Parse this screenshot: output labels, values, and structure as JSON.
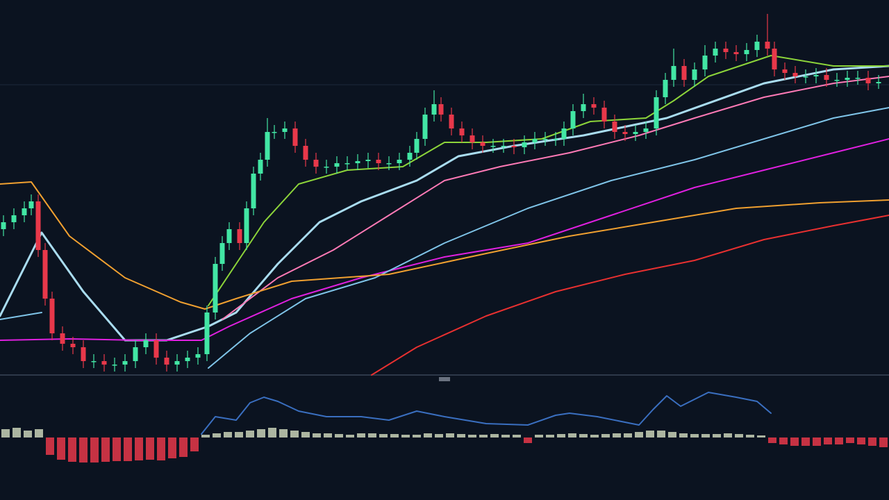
{
  "chart_data": [
    {
      "type": "candlestick",
      "xlim": [
        0,
        1280
      ],
      "ylim": [
        0,
        540
      ],
      "up_color": "#42e6a4",
      "down_color": "#e8384a",
      "x": [
        5,
        20,
        35,
        45,
        55,
        65,
        75,
        90,
        105,
        120,
        135,
        150,
        165,
        180,
        195,
        210,
        225,
        240,
        255,
        270,
        285,
        298,
        310,
        320,
        330,
        345,
        355,
        365,
        375,
        385,
        395,
        410,
        425,
        440,
        455,
        470,
        485,
        500,
        515,
        530,
        545,
        560,
        575,
        590,
        600,
        612,
        625,
        635,
        650,
        665,
        680,
        695,
        710,
        725,
        740,
        755,
        770,
        785,
        800,
        812,
        825,
        840,
        855,
        870,
        885,
        900,
        915,
        930,
        945,
        958,
        970,
        985,
        1000,
        1015,
        1030,
        1045,
        1060,
        1075,
        1090,
        1105,
        1115,
        1130,
        1145,
        1160,
        1175,
        1190,
        1205,
        1220,
        1235,
        1250,
        1265
      ],
      "open": [
        210,
        220,
        230,
        240,
        250,
        180,
        110,
        60,
        45,
        40,
        20,
        20,
        15,
        15,
        20,
        40,
        50,
        25,
        15,
        20,
        25,
        30,
        90,
        160,
        190,
        210,
        190,
        240,
        290,
        310,
        350,
        350,
        355,
        330,
        310,
        300,
        300,
        305,
        305,
        308,
        310,
        305,
        305,
        310,
        320,
        340,
        375,
        390,
        375,
        355,
        345,
        335,
        330,
        330,
        330,
        328,
        335,
        340,
        340,
        340,
        355,
        380,
        390,
        385,
        365,
        350,
        347,
        350,
        355,
        400,
        425,
        445,
        425,
        440,
        460,
        470,
        465,
        462,
        468,
        480,
        470,
        440,
        435,
        430,
        430,
        432,
        425,
        425,
        428,
        428,
        420
      ],
      "close": [
        220,
        230,
        240,
        250,
        180,
        110,
        60,
        45,
        40,
        20,
        20,
        15,
        15,
        20,
        40,
        50,
        25,
        15,
        20,
        25,
        30,
        90,
        160,
        190,
        210,
        190,
        240,
        290,
        310,
        350,
        350,
        355,
        330,
        310,
        300,
        300,
        305,
        305,
        308,
        310,
        305,
        305,
        310,
        320,
        340,
        375,
        390,
        375,
        355,
        345,
        335,
        330,
        330,
        330,
        328,
        335,
        340,
        340,
        340,
        355,
        380,
        390,
        385,
        365,
        350,
        347,
        350,
        355,
        400,
        425,
        445,
        425,
        440,
        460,
        470,
        465,
        462,
        468,
        480,
        470,
        440,
        435,
        430,
        430,
        432,
        425,
        425,
        428,
        428,
        420,
        422
      ],
      "high": [
        230,
        240,
        250,
        260,
        260,
        190,
        120,
        70,
        55,
        50,
        30,
        30,
        25,
        30,
        50,
        60,
        60,
        35,
        30,
        35,
        40,
        100,
        170,
        200,
        220,
        220,
        250,
        300,
        320,
        370,
        360,
        365,
        365,
        340,
        320,
        310,
        315,
        315,
        318,
        320,
        320,
        315,
        320,
        330,
        350,
        385,
        410,
        400,
        385,
        365,
        355,
        345,
        340,
        340,
        340,
        345,
        350,
        350,
        350,
        365,
        390,
        405,
        400,
        395,
        375,
        360,
        360,
        365,
        410,
        435,
        470,
        455,
        450,
        475,
        480,
        480,
        475,
        478,
        490,
        520,
        480,
        450,
        445,
        440,
        442,
        442,
        435,
        438,
        438,
        438,
        432
      ],
      "low": [
        200,
        210,
        220,
        230,
        170,
        100,
        50,
        35,
        30,
        10,
        10,
        5,
        5,
        5,
        10,
        30,
        15,
        5,
        5,
        10,
        15,
        20,
        80,
        150,
        180,
        180,
        180,
        230,
        280,
        300,
        340,
        340,
        320,
        300,
        290,
        290,
        290,
        295,
        295,
        298,
        295,
        295,
        295,
        300,
        310,
        330,
        365,
        365,
        345,
        335,
        325,
        320,
        320,
        320,
        318,
        318,
        325,
        330,
        330,
        330,
        345,
        370,
        375,
        355,
        340,
        337,
        337,
        340,
        345,
        390,
        415,
        415,
        415,
        430,
        450,
        455,
        452,
        452,
        458,
        460,
        430,
        425,
        420,
        420,
        420,
        415,
        415,
        415,
        418,
        410,
        412
      ],
      "lines": [
        {
          "color": "#a9dcef",
          "x": [
            0,
            60,
            120,
            180,
            240,
            300,
            340,
            400,
            460,
            520,
            600,
            660,
            740,
            840,
            960,
            1100,
            1200,
            1280
          ],
          "values": [
            85,
            205,
            120,
            50,
            50,
            70,
            90,
            160,
            220,
            250,
            280,
            315,
            330,
            345,
            370,
            420,
            440,
            445
          ]
        },
        {
          "color": "#ff7ab6",
          "x": [
            320,
            400,
            480,
            560,
            640,
            720,
            820,
            920,
            1000,
            1100,
            1200,
            1280
          ],
          "values": [
            80,
            140,
            180,
            230,
            280,
            300,
            320,
            345,
            370,
            400,
            420,
            430
          ]
        },
        {
          "color": "#e020e0",
          "x": [
            0,
            100,
            200,
            290,
            330,
            420,
            520,
            640,
            760,
            880,
            1000,
            1100,
            1200,
            1280
          ],
          "values": [
            50,
            52,
            50,
            50,
            70,
            110,
            140,
            170,
            190,
            230,
            270,
            295,
            320,
            340
          ]
        },
        {
          "color": "#7fc4e8",
          "x": [
            0,
            60,
            180,
            300,
            360,
            440,
            540,
            640,
            760,
            880,
            1000,
            1100,
            1200,
            1280
          ],
          "values": [
            80,
            90,
            null,
            10,
            60,
            110,
            140,
            190,
            240,
            280,
            310,
            340,
            370,
            385
          ]
        },
        {
          "color": "#f0a030",
          "x": [
            0,
            45,
            100,
            180,
            260,
            295,
            340,
            420,
            560,
            700,
            820,
            940,
            1060,
            1180,
            1280
          ],
          "values": [
            275,
            278,
            200,
            140,
            105,
            95,
            110,
            135,
            145,
            175,
            200,
            220,
            240,
            248,
            252
          ]
        },
        {
          "color": "#e83030",
          "x": [
            535,
            600,
            700,
            800,
            900,
            1000,
            1100,
            1200,
            1280
          ],
          "values": [
            0,
            40,
            85,
            120,
            145,
            165,
            195,
            215,
            230
          ]
        },
        {
          "color": "#8cd43a",
          "x": [
            300,
            340,
            380,
            430,
            500,
            580,
            640,
            700,
            780,
            850,
            930,
            970,
            1020,
            1110,
            1200,
            1280
          ],
          "values": [
            100,
            160,
            220,
            275,
            295,
            300,
            335,
            335,
            340,
            365,
            370,
            395,
            430,
            460,
            445,
            445
          ]
        }
      ]
    },
    {
      "type": "line",
      "xlim": [
        0,
        1280
      ],
      "ylim": [
        -90,
        85
      ],
      "color": "#3a6fc0",
      "x": [
        290,
        310,
        340,
        360,
        380,
        400,
        430,
        470,
        520,
        560,
        600,
        640,
        700,
        760,
        800,
        820,
        860,
        920,
        940,
        960,
        980,
        1000,
        1020,
        1060,
        1090,
        1110
      ],
      "values": [
        5,
        30,
        25,
        50,
        58,
        52,
        38,
        30,
        30,
        25,
        38,
        30,
        20,
        18,
        32,
        35,
        30,
        18,
        40,
        60,
        45,
        55,
        65,
        58,
        52,
        35
      ],
      "histogram": {
        "up_color": "#c9d2b8",
        "down_color": "#e8384a",
        "x": [
          8,
          24,
          40,
          56,
          72,
          88,
          104,
          120,
          136,
          152,
          168,
          184,
          200,
          216,
          232,
          248,
          264,
          280,
          296,
          312,
          328,
          344,
          360,
          376,
          392,
          408,
          424,
          440,
          456,
          472,
          488,
          504,
          520,
          536,
          552,
          568,
          584,
          600,
          616,
          632,
          648,
          664,
          680,
          696,
          712,
          728,
          744,
          760,
          776,
          792,
          808,
          824,
          840,
          856,
          872,
          888,
          904,
          920,
          936,
          952,
          968,
          984,
          1000,
          1016,
          1032,
          1048,
          1064,
          1080,
          1096,
          1112,
          1128,
          1144,
          1160,
          1176,
          1192,
          1208,
          1224,
          1240,
          1256,
          1272
        ],
        "values": [
          12,
          14,
          10,
          12,
          -25,
          -32,
          -35,
          -36,
          -36,
          -35,
          -34,
          -34,
          -33,
          -32,
          -33,
          -30,
          -28,
          -20,
          4,
          6,
          8,
          8,
          10,
          12,
          14,
          12,
          10,
          8,
          6,
          6,
          5,
          4,
          6,
          6,
          5,
          5,
          4,
          4,
          6,
          5,
          6,
          5,
          4,
          4,
          5,
          4,
          4,
          -8,
          4,
          4,
          5,
          6,
          5,
          4,
          5,
          6,
          6,
          8,
          10,
          10,
          8,
          6,
          5,
          5,
          5,
          6,
          5,
          4,
          3,
          -8,
          -10,
          -12,
          -12,
          -12,
          -10,
          -10,
          -8,
          -10,
          -12,
          -14
        ]
      }
    }
  ]
}
